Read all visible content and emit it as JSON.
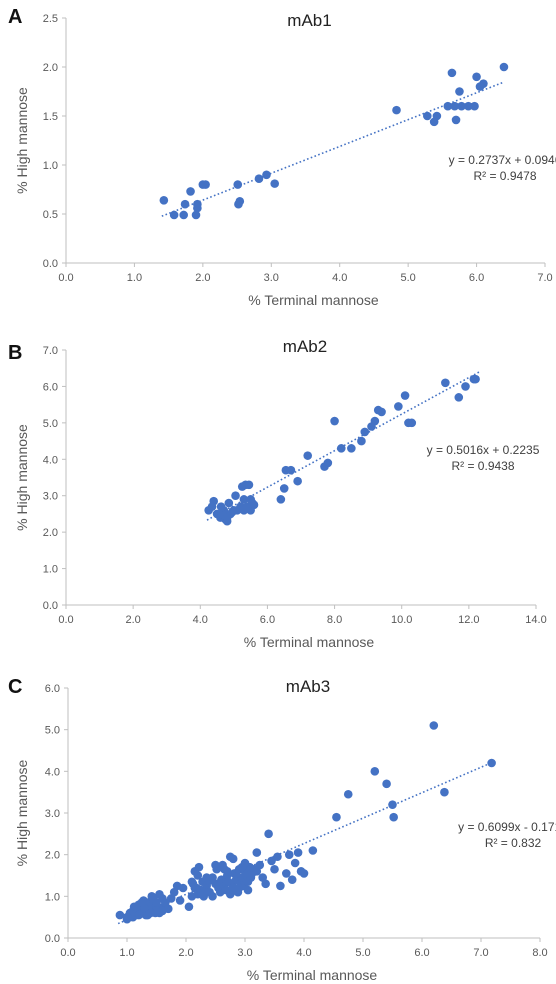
{
  "chart_data": [
    {
      "panel": "A",
      "type": "scatter",
      "title": "mAb1",
      "xlabel": "% Terminal mannose",
      "ylabel": "% High mannose",
      "xlim": [
        0,
        7
      ],
      "ylim": [
        0,
        2.5
      ],
      "xticks": [
        0,
        1,
        2,
        3,
        4,
        5,
        6,
        7
      ],
      "yticks": [
        0,
        0.5,
        1,
        1.5,
        2,
        2.5
      ],
      "xtick_labels": [
        "0.0",
        "1.0",
        "2.0",
        "3.0",
        "4.0",
        "5.0",
        "6.0",
        "7.0"
      ],
      "ytick_labels": [
        "0.0",
        "0.5",
        "1.0",
        "1.5",
        "2.0",
        "2.5"
      ],
      "series": [
        {
          "x": [
            1.43,
            1.58,
            1.72,
            1.74,
            1.82,
            1.9,
            1.92,
            1.92,
            2.0,
            2.04,
            2.51,
            2.52,
            2.54,
            2.82,
            2.93,
            3.05,
            4.83,
            5.28,
            5.38,
            5.42,
            5.58,
            5.64,
            5.68,
            5.7,
            5.75,
            5.78,
            5.88,
            5.97,
            6.0,
            6.05,
            6.1,
            6.4
          ],
          "y": [
            0.64,
            0.49,
            0.49,
            0.6,
            0.73,
            0.49,
            0.56,
            0.6,
            0.8,
            0.8,
            0.8,
            0.6,
            0.63,
            0.86,
            0.9,
            0.81,
            1.56,
            1.5,
            1.44,
            1.5,
            1.6,
            1.94,
            1.6,
            1.46,
            1.75,
            1.6,
            1.6,
            1.6,
            1.9,
            1.8,
            1.83,
            2.0
          ]
        }
      ],
      "trendline": {
        "slope": 0.2737,
        "intercept": 0.0946,
        "x_range": [
          1.4,
          6.4
        ]
      },
      "equation": "y = 0.2737x + 0.0946",
      "r2": "R² = 0.9478"
    },
    {
      "panel": "B",
      "type": "scatter",
      "title": "mAb2",
      "xlabel": "% Terminal mannose",
      "ylabel": "% High mannose",
      "xlim": [
        0,
        14
      ],
      "ylim": [
        0,
        7
      ],
      "xticks": [
        0,
        2,
        4,
        6,
        8,
        10,
        12,
        14
      ],
      "yticks": [
        0,
        1,
        2,
        3,
        4,
        5,
        6,
        7
      ],
      "xtick_labels": [
        "0.0",
        "2.0",
        "4.0",
        "6.0",
        "8.0",
        "10.0",
        "12.0",
        "14.0"
      ],
      "ytick_labels": [
        "0.0",
        "1.0",
        "2.0",
        "3.0",
        "4.0",
        "5.0",
        "6.0",
        "7.0"
      ],
      "series": [
        {
          "x": [
            4.25,
            4.35,
            4.4,
            4.5,
            4.6,
            4.62,
            4.7,
            4.72,
            4.75,
            4.8,
            4.85,
            4.9,
            5.0,
            5.05,
            5.1,
            5.2,
            5.25,
            5.3,
            5.35,
            5.4,
            5.45,
            5.5,
            5.55,
            5.6,
            4.65,
            4.8,
            4.95,
            5.3,
            5.4,
            5.5,
            6.4,
            6.5,
            6.55,
            6.7,
            6.9,
            7.2,
            7.7,
            7.8,
            8.0,
            8.2,
            8.5,
            8.8,
            8.9,
            9.1,
            9.2,
            9.3,
            9.4,
            9.9,
            10.1,
            10.2,
            10.3,
            11.3,
            11.7,
            11.9,
            12.15,
            12.2
          ],
          "y": [
            2.6,
            2.7,
            2.85,
            2.5,
            2.4,
            2.7,
            2.6,
            2.45,
            2.35,
            2.3,
            2.8,
            2.5,
            2.6,
            3.0,
            2.6,
            2.7,
            3.25,
            2.6,
            3.3,
            2.7,
            3.3,
            2.6,
            2.8,
            2.75,
            2.5,
            2.4,
            2.55,
            2.9,
            2.65,
            2.9,
            2.9,
            3.2,
            3.7,
            3.7,
            3.4,
            4.1,
            3.8,
            3.9,
            5.05,
            4.3,
            4.3,
            4.5,
            4.75,
            4.9,
            5.05,
            5.35,
            5.3,
            5.45,
            5.75,
            5.0,
            5.0,
            6.1,
            5.7,
            6.0,
            6.2,
            6.2
          ]
        }
      ],
      "trendline": {
        "slope": 0.5016,
        "intercept": 0.2235,
        "x_range": [
          4.2,
          12.3
        ]
      },
      "equation": "y = 0.5016x + 0.2235",
      "r2": "R² = 0.9438"
    },
    {
      "panel": "C",
      "type": "scatter",
      "title": "mAb3",
      "xlabel": "% Terminal mannose",
      "ylabel": "% High mannose",
      "xlim": [
        0,
        8
      ],
      "ylim": [
        0,
        6
      ],
      "xticks": [
        0,
        1,
        2,
        3,
        4,
        5,
        6,
        7,
        8
      ],
      "yticks": [
        0,
        1,
        2,
        3,
        4,
        5,
        6
      ],
      "xtick_labels": [
        "0.0",
        "1.0",
        "2.0",
        "3.0",
        "4.0",
        "5.0",
        "6.0",
        "7.0",
        "8.0"
      ],
      "ytick_labels": [
        "0.0",
        "1.0",
        "2.0",
        "3.0",
        "4.0",
        "5.0",
        "6.0"
      ],
      "series": [
        {
          "x": [
            0.88,
            1.0,
            1.05,
            1.1,
            1.12,
            1.15,
            1.2,
            1.22,
            1.25,
            1.28,
            1.3,
            1.32,
            1.35,
            1.38,
            1.4,
            1.42,
            1.45,
            1.48,
            1.5,
            1.52,
            1.55,
            1.6,
            1.62,
            1.65,
            1.7,
            1.75,
            1.8,
            1.85,
            1.9,
            1.95,
            1.0,
            1.1,
            1.2,
            1.3,
            1.4,
            1.5,
            1.6,
            1.25,
            1.35,
            1.45,
            1.15,
            1.55,
            2.05,
            2.1,
            2.12,
            2.15,
            2.18,
            2.2,
            2.22,
            2.25,
            2.28,
            2.3,
            2.35,
            2.4,
            2.45,
            2.5,
            2.52,
            2.55,
            2.58,
            2.6,
            2.62,
            2.65,
            2.68,
            2.7,
            2.72,
            2.75,
            2.78,
            2.8,
            2.82,
            2.85,
            2.88,
            2.9,
            2.92,
            2.95,
            2.98,
            3.0,
            3.02,
            3.05,
            3.08,
            3.1,
            3.12,
            3.15,
            3.2,
            3.25,
            3.3,
            2.15,
            2.3,
            2.45,
            2.6,
            2.75,
            2.9,
            3.05,
            2.2,
            2.4,
            2.55,
            2.7,
            2.85,
            3.0,
            2.1,
            2.35,
            2.5,
            2.65,
            2.8,
            2.95,
            3.2,
            3.35,
            3.4,
            3.45,
            3.5,
            3.55,
            3.6,
            3.7,
            3.75,
            3.8,
            3.85,
            3.9,
            3.95,
            4.0,
            4.15,
            4.55,
            4.75,
            5.2,
            5.4,
            5.5,
            5.52,
            6.2,
            6.38,
            7.18
          ],
          "y": [
            0.55,
            0.45,
            0.6,
            0.5,
            0.75,
            0.55,
            0.8,
            0.65,
            0.6,
            0.9,
            0.7,
            0.55,
            0.85,
            0.75,
            0.65,
            1.0,
            0.9,
            0.6,
            0.8,
            0.7,
            1.05,
            0.95,
            0.75,
            0.85,
            0.7,
            0.95,
            1.1,
            1.25,
            0.9,
            1.2,
            0.5,
            0.65,
            0.55,
            0.7,
            0.6,
            0.85,
            0.65,
            0.85,
            0.55,
            0.95,
            0.75,
            0.6,
            0.75,
            1.0,
            1.3,
            1.6,
            1.2,
            1.05,
            1.7,
            1.15,
            1.35,
            1.0,
            1.25,
            1.1,
            1.45,
            1.3,
            1.65,
            1.2,
            1.1,
            1.4,
            1.75,
            1.25,
            1.15,
            1.5,
            1.35,
            1.95,
            1.3,
            1.2,
            1.55,
            1.4,
            1.1,
            1.65,
            1.3,
            1.45,
            1.25,
            1.6,
            1.5,
            1.35,
            1.7,
            1.45,
            1.55,
            1.65,
            2.05,
            1.75,
            1.45,
            1.2,
            1.1,
            1.0,
            1.3,
            1.05,
            1.2,
            1.15,
            1.5,
            1.4,
            1.3,
            1.6,
            1.55,
            1.8,
            1.35,
            1.45,
            1.75,
            1.65,
            1.9,
            1.7,
            1.6,
            1.3,
            2.5,
            1.85,
            1.65,
            1.95,
            1.25,
            1.55,
            2.0,
            1.4,
            1.8,
            2.05,
            1.6,
            1.55,
            2.1,
            2.9,
            3.45,
            4.0,
            3.7,
            3.2,
            2.9,
            5.1,
            3.5,
            4.2
          ]
        }
      ],
      "trendline": {
        "slope": 0.6099,
        "intercept": -0.1718,
        "x_range": [
          0.85,
          7.2
        ]
      },
      "equation": "y = 0.6099x - 0.1718",
      "r2": "R² = 0.832"
    }
  ],
  "colors": {
    "marker": "#4472c4",
    "trendline": "#4472c4",
    "axis": "#bfbfbf",
    "text": "#595959"
  }
}
